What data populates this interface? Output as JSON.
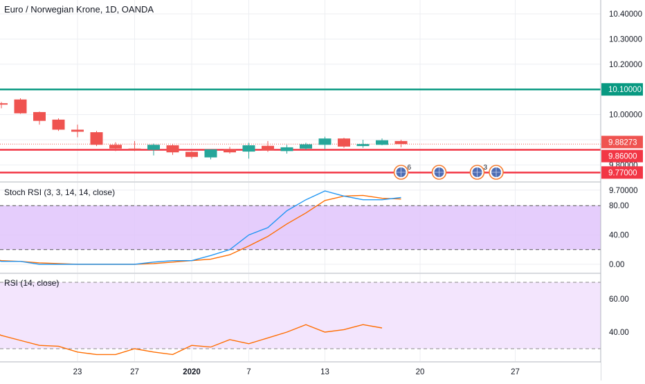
{
  "header": {
    "symbol_title": "Euro / Norwegian Krone, 1D, OANDA"
  },
  "price_axis": {
    "ticks": [
      "10.40000",
      "10.30000",
      "10.20000",
      "10.10000",
      "10.00000",
      "9.90000",
      "9.80000",
      "9.70000"
    ],
    "tick_values": [
      10.4,
      10.3,
      10.2,
      10.1,
      10.0,
      9.9,
      9.8,
      9.7
    ]
  },
  "time_axis": {
    "ticks": [
      {
        "label": "23",
        "bar": 4
      },
      {
        "label": "27",
        "bar": 7
      },
      {
        "label": "2020",
        "bar": 10,
        "bold": true
      },
      {
        "label": "7",
        "bar": 13
      },
      {
        "label": "13",
        "bar": 17
      },
      {
        "label": "20",
        "bar": 22
      },
      {
        "label": "27",
        "bar": 27
      }
    ]
  },
  "colors": {
    "up": "#26a69a",
    "down": "#ef5350",
    "resistance_line": "#089981",
    "support_line": "#f23645",
    "stoch_k": "#2196f3",
    "stoch_d": "#ff6d00",
    "rsi_line": "#ff6d00",
    "stoch_band": "#e1c4fb",
    "rsi_band": "#f3e5fd",
    "grid": "#eceef2",
    "text": "#131722"
  },
  "price_lines": [
    {
      "value": 10.1,
      "label": "10.10000",
      "color": "#089981"
    },
    {
      "value": 9.86,
      "label": "9.86000",
      "color": "#f23645"
    },
    {
      "value": 9.77,
      "label": "9.77000",
      "color": "#f23645"
    }
  ],
  "last_price": {
    "value": 9.88273,
    "label": "9.88273"
  },
  "events": [
    {
      "bar": 21,
      "count": "6"
    },
    {
      "bar": 23,
      "count": ""
    },
    {
      "bar": 25,
      "count": "3"
    },
    {
      "bar": 26,
      "count": ""
    }
  ],
  "stoch_panel": {
    "title": "Stoch RSI (3, 3, 14, 14, close)",
    "ticks": [
      "80.00",
      "40.00",
      "0.00"
    ],
    "tick_values": [
      80,
      40,
      0
    ],
    "upper_band": 80,
    "lower_band": 20
  },
  "rsi_panel": {
    "title": "RSI (14, close)",
    "ticks": [
      "60.00",
      "40.00"
    ],
    "tick_values": [
      60,
      40
    ],
    "upper_band": 70,
    "lower_band": 30
  },
  "chart_data": {
    "type": "candlestick",
    "title": "Euro / Norwegian Krone, 1D, OANDA",
    "x_reference": "bar index; tick labels: 23 (Dec), 27 (Dec), 2020, 7, 13, 20, 27 (Jan)",
    "ylim": [
      9.69,
      10.445
    ],
    "candles": [
      {
        "bar": 0,
        "open": 10.045,
        "high": 10.05,
        "low": 10.025,
        "close": 10.04
      },
      {
        "bar": 1,
        "open": 10.06,
        "high": 10.065,
        "low": 10.003,
        "close": 10.005
      },
      {
        "bar": 2,
        "open": 10.01,
        "high": 10.012,
        "low": 9.96,
        "close": 9.975
      },
      {
        "bar": 3,
        "open": 9.98,
        "high": 9.985,
        "low": 9.935,
        "close": 9.94
      },
      {
        "bar": 4,
        "open": 9.94,
        "high": 9.96,
        "low": 9.91,
        "close": 9.932
      },
      {
        "bar": 5,
        "open": 9.93,
        "high": 9.935,
        "low": 9.875,
        "close": 9.88
      },
      {
        "bar": 6,
        "open": 9.88,
        "high": 9.89,
        "low": 9.855,
        "close": 9.865
      },
      {
        "bar": 7,
        "open": 9.865,
        "high": 9.895,
        "low": 9.855,
        "close": 9.862
      },
      {
        "bar": 8,
        "open": 9.86,
        "high": 9.885,
        "low": 9.838,
        "close": 9.88
      },
      {
        "bar": 9,
        "open": 9.878,
        "high": 9.882,
        "low": 9.84,
        "close": 9.85
      },
      {
        "bar": 10,
        "open": 9.852,
        "high": 9.855,
        "low": 9.825,
        "close": 9.832
      },
      {
        "bar": 11,
        "open": 9.83,
        "high": 9.862,
        "low": 9.822,
        "close": 9.862
      },
      {
        "bar": 12,
        "open": 9.862,
        "high": 9.872,
        "low": 9.845,
        "close": 9.85
      },
      {
        "bar": 13,
        "open": 9.853,
        "high": 9.888,
        "low": 9.825,
        "close": 9.878
      },
      {
        "bar": 14,
        "open": 9.876,
        "high": 9.895,
        "low": 9.852,
        "close": 9.858
      },
      {
        "bar": 15,
        "open": 9.855,
        "high": 9.88,
        "low": 9.845,
        "close": 9.87
      },
      {
        "bar": 16,
        "open": 9.865,
        "high": 9.888,
        "low": 9.86,
        "close": 9.882
      },
      {
        "bar": 17,
        "open": 9.88,
        "high": 9.912,
        "low": 9.862,
        "close": 9.905
      },
      {
        "bar": 18,
        "open": 9.905,
        "high": 9.908,
        "low": 9.868,
        "close": 9.873
      },
      {
        "bar": 19,
        "open": 9.875,
        "high": 9.9,
        "low": 9.868,
        "close": 9.883
      },
      {
        "bar": 20,
        "open": 9.88,
        "high": 9.905,
        "low": 9.878,
        "close": 9.898
      },
      {
        "bar": 21,
        "open": 9.895,
        "high": 9.9,
        "low": 9.87,
        "close": 9.883
      }
    ],
    "stoch_rsi": {
      "k": [
        {
          "bar": -1,
          "value": 10
        },
        {
          "bar": 0,
          "value": 4
        },
        {
          "bar": 1,
          "value": 4
        },
        {
          "bar": 2,
          "value": 0
        },
        {
          "bar": 3,
          "value": 0
        },
        {
          "bar": 4,
          "value": 0
        },
        {
          "bar": 5,
          "value": 0
        },
        {
          "bar": 6,
          "value": 0
        },
        {
          "bar": 7,
          "value": 0
        },
        {
          "bar": 8,
          "value": 3
        },
        {
          "bar": 9,
          "value": 5
        },
        {
          "bar": 10,
          "value": 5
        },
        {
          "bar": 11,
          "value": 12
        },
        {
          "bar": 12,
          "value": 20
        },
        {
          "bar": 13,
          "value": 40
        },
        {
          "bar": 14,
          "value": 50
        },
        {
          "bar": 15,
          "value": 73
        },
        {
          "bar": 16,
          "value": 88
        },
        {
          "bar": 17,
          "value": 100
        },
        {
          "bar": 18,
          "value": 93
        },
        {
          "bar": 19,
          "value": 88
        },
        {
          "bar": 20,
          "value": 88
        },
        {
          "bar": 21,
          "value": 91
        }
      ],
      "d": [
        {
          "bar": -1,
          "value": 10
        },
        {
          "bar": 0,
          "value": 5
        },
        {
          "bar": 1,
          "value": 4
        },
        {
          "bar": 2,
          "value": 2
        },
        {
          "bar": 3,
          "value": 1
        },
        {
          "bar": 4,
          "value": 0
        },
        {
          "bar": 5,
          "value": 0
        },
        {
          "bar": 6,
          "value": 0
        },
        {
          "bar": 7,
          "value": 0
        },
        {
          "bar": 8,
          "value": 1
        },
        {
          "bar": 9,
          "value": 3
        },
        {
          "bar": 10,
          "value": 5
        },
        {
          "bar": 11,
          "value": 7
        },
        {
          "bar": 12,
          "value": 13
        },
        {
          "bar": 13,
          "value": 25
        },
        {
          "bar": 14,
          "value": 38
        },
        {
          "bar": 15,
          "value": 55
        },
        {
          "bar": 16,
          "value": 70
        },
        {
          "bar": 17,
          "value": 87
        },
        {
          "bar": 18,
          "value": 93
        },
        {
          "bar": 19,
          "value": 94
        },
        {
          "bar": 20,
          "value": 90
        },
        {
          "bar": 21,
          "value": 89
        }
      ]
    },
    "rsi": [
      {
        "bar": -1,
        "value": 43
      },
      {
        "bar": 0,
        "value": 38
      },
      {
        "bar": 1,
        "value": 35
      },
      {
        "bar": 2,
        "value": 32
      },
      {
        "bar": 3,
        "value": 31.5
      },
      {
        "bar": 4,
        "value": 28
      },
      {
        "bar": 5,
        "value": 26.5
      },
      {
        "bar": 6,
        "value": 26.5
      },
      {
        "bar": 7,
        "value": 30
      },
      {
        "bar": 8,
        "value": 28
      },
      {
        "bar": 9,
        "value": 26.5
      },
      {
        "bar": 10,
        "value": 32
      },
      {
        "bar": 11,
        "value": 31
      },
      {
        "bar": 12,
        "value": 35.5
      },
      {
        "bar": 13,
        "value": 33
      },
      {
        "bar": 14,
        "value": 36.5
      },
      {
        "bar": 15,
        "value": 40
      },
      {
        "bar": 16,
        "value": 44.5
      },
      {
        "bar": 17,
        "value": 40
      },
      {
        "bar": 18,
        "value": 41.5
      },
      {
        "bar": 19,
        "value": 44.5
      },
      {
        "bar": 20,
        "value": 42.5
      }
    ]
  }
}
